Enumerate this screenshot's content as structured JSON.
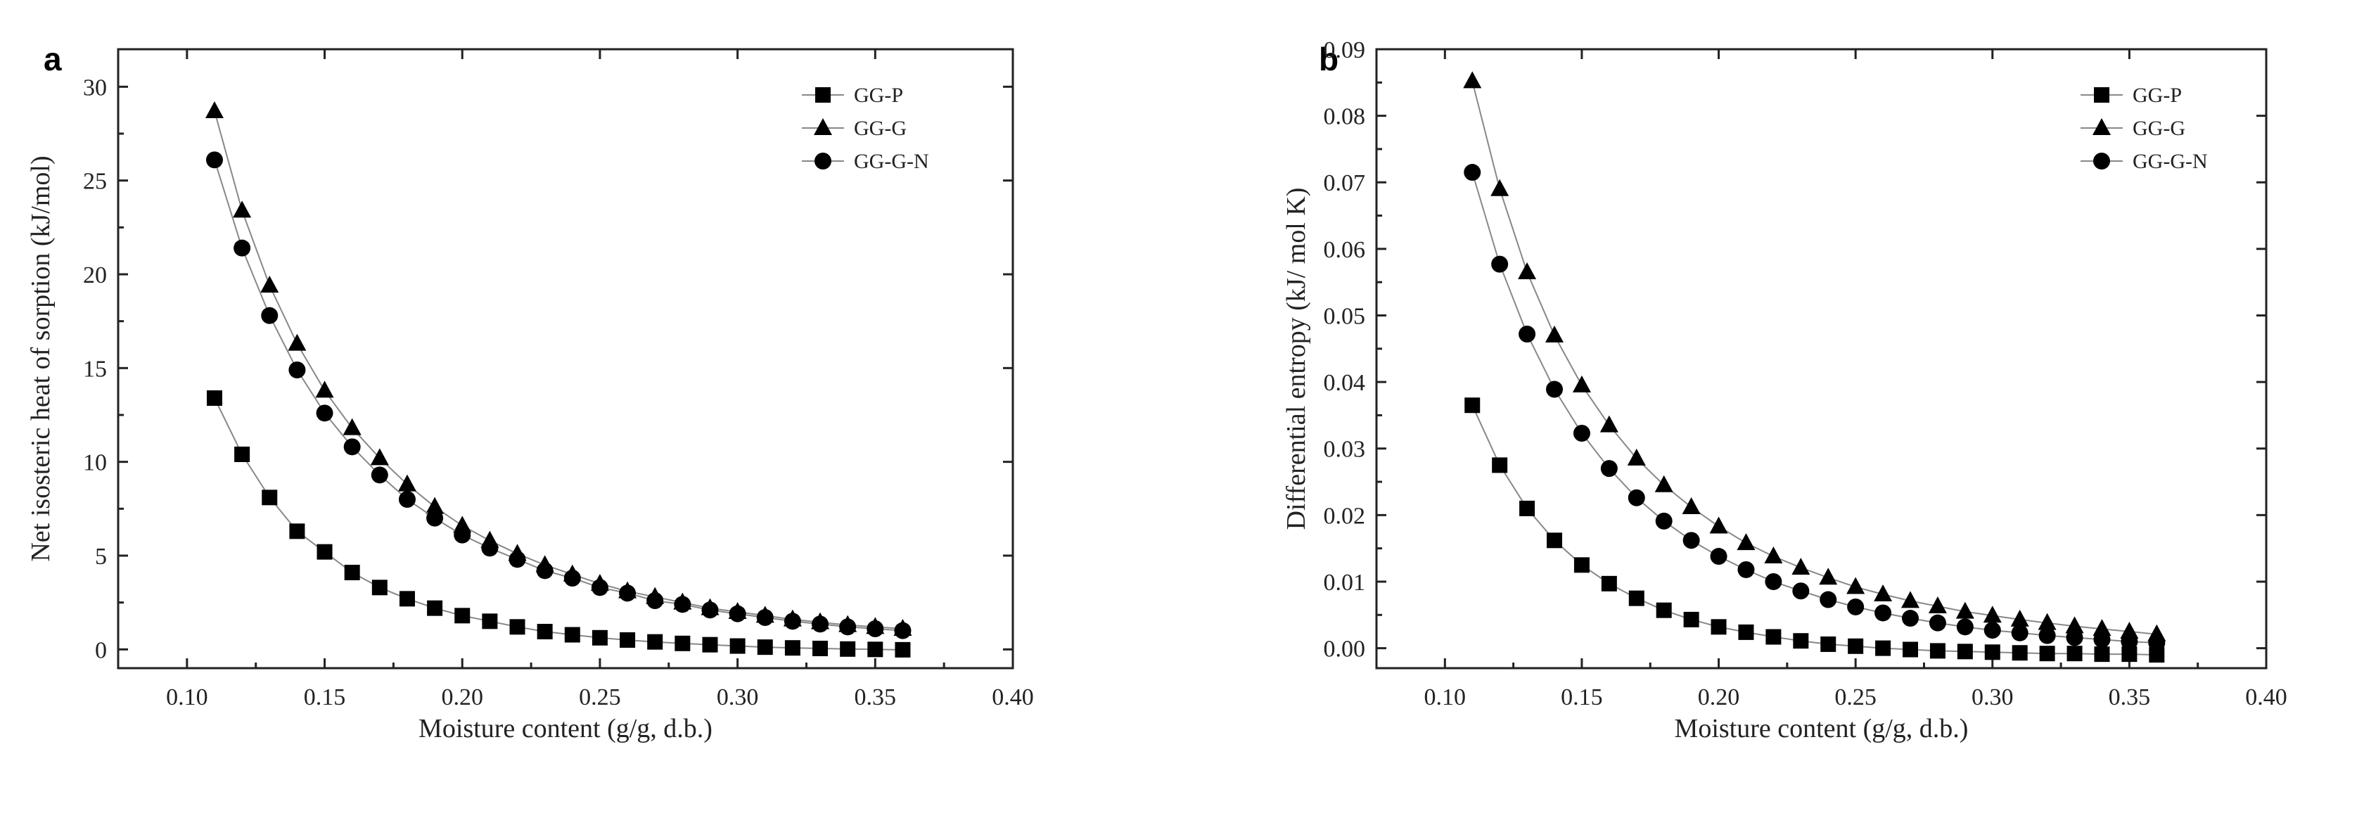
{
  "chart_data": [
    {
      "panel": "a",
      "type": "scatter",
      "title": "",
      "xlabel": "Moisture content (g/g, d.b.)",
      "ylabel": "Net isosteric heat of sorption (kJ/mol)",
      "xlim": [
        0.075,
        0.4
      ],
      "ylim": [
        -1,
        32
      ],
      "xticks": [
        0.1,
        0.15,
        0.2,
        0.25,
        0.3,
        0.35,
        0.4
      ],
      "xtick_labels": [
        "0.10",
        "0.15",
        "0.20",
        "0.25",
        "0.30",
        "0.35",
        "0.40"
      ],
      "yticks": [
        0,
        5,
        10,
        15,
        20,
        25,
        30
      ],
      "ytick_labels": [
        "0",
        "5",
        "10",
        "15",
        "20",
        "25",
        "30"
      ],
      "legend_position": "top-right",
      "x": [
        0.11,
        0.12,
        0.13,
        0.14,
        0.15,
        0.16,
        0.17,
        0.18,
        0.19,
        0.2,
        0.21,
        0.22,
        0.23,
        0.24,
        0.25,
        0.26,
        0.27,
        0.28,
        0.29,
        0.3,
        0.31,
        0.32,
        0.33,
        0.34,
        0.35,
        0.36
      ],
      "series": [
        {
          "name": "GG-P",
          "marker": "square",
          "values": [
            13.4,
            10.4,
            8.1,
            6.3,
            5.2,
            4.1,
            3.3,
            2.7,
            2.2,
            1.8,
            1.5,
            1.2,
            0.95,
            0.78,
            0.62,
            0.5,
            0.4,
            0.32,
            0.25,
            0.18,
            0.12,
            0.08,
            0.05,
            0.02,
            0.0,
            -0.02
          ]
        },
        {
          "name": "GG-G",
          "marker": "triangle",
          "values": [
            28.7,
            23.4,
            19.4,
            16.3,
            13.8,
            11.8,
            10.2,
            8.8,
            7.6,
            6.6,
            5.8,
            5.1,
            4.5,
            4.0,
            3.5,
            3.1,
            2.8,
            2.5,
            2.2,
            2.0,
            1.8,
            1.6,
            1.45,
            1.3,
            1.2,
            1.1
          ]
        },
        {
          "name": "GG-G-N",
          "marker": "circle",
          "values": [
            26.1,
            21.4,
            17.8,
            14.9,
            12.6,
            10.8,
            9.3,
            8.0,
            7.0,
            6.1,
            5.4,
            4.8,
            4.2,
            3.8,
            3.3,
            3.0,
            2.6,
            2.4,
            2.1,
            1.9,
            1.7,
            1.5,
            1.35,
            1.2,
            1.1,
            1.0
          ]
        }
      ]
    },
    {
      "panel": "b",
      "type": "scatter",
      "title": "",
      "xlabel": "Moisture content (g/g, d.b.)",
      "ylabel": "Differential entropy (kJ/ mol K)",
      "xlim": [
        0.075,
        0.4
      ],
      "ylim": [
        -0.003,
        0.09
      ],
      "xticks": [
        0.1,
        0.15,
        0.2,
        0.25,
        0.3,
        0.35,
        0.4
      ],
      "xtick_labels": [
        "0.10",
        "0.15",
        "0.20",
        "0.25",
        "0.30",
        "0.35",
        "0.40"
      ],
      "yticks": [
        0.0,
        0.01,
        0.02,
        0.03,
        0.04,
        0.05,
        0.06,
        0.07,
        0.08,
        0.09
      ],
      "ytick_labels": [
        "0.00",
        "0.01",
        "0.02",
        "0.03",
        "0.04",
        "0.05",
        "0.06",
        "0.07",
        "0.08",
        "0.09"
      ],
      "legend_position": "top-right",
      "x": [
        0.11,
        0.12,
        0.13,
        0.14,
        0.15,
        0.16,
        0.17,
        0.18,
        0.19,
        0.2,
        0.21,
        0.22,
        0.23,
        0.24,
        0.25,
        0.26,
        0.27,
        0.28,
        0.29,
        0.3,
        0.31,
        0.32,
        0.33,
        0.34,
        0.35,
        0.36
      ],
      "series": [
        {
          "name": "GG-P",
          "marker": "square",
          "values": [
            0.0365,
            0.0275,
            0.021,
            0.0162,
            0.0125,
            0.0097,
            0.0075,
            0.0057,
            0.0043,
            0.0032,
            0.0024,
            0.0017,
            0.0011,
            0.0006,
            0.0003,
            0.0,
            -0.0002,
            -0.0004,
            -0.0005,
            -0.0006,
            -0.0007,
            -0.0008,
            -0.0008,
            -0.0009,
            -0.0009,
            -0.001
          ]
        },
        {
          "name": "GG-G",
          "marker": "triangle",
          "values": [
            0.0852,
            0.069,
            0.0565,
            0.047,
            0.0395,
            0.0335,
            0.0285,
            0.0245,
            0.0212,
            0.0183,
            0.0158,
            0.0138,
            0.0121,
            0.0106,
            0.0092,
            0.0081,
            0.0071,
            0.0063,
            0.0055,
            0.0049,
            0.0043,
            0.0038,
            0.0033,
            0.0029,
            0.0025,
            0.0021
          ]
        },
        {
          "name": "GG-G-N",
          "marker": "circle",
          "values": [
            0.0715,
            0.0577,
            0.0472,
            0.0389,
            0.0323,
            0.027,
            0.0226,
            0.0191,
            0.0162,
            0.0138,
            0.0118,
            0.01,
            0.0086,
            0.0073,
            0.0062,
            0.0053,
            0.0045,
            0.0038,
            0.0032,
            0.0027,
            0.0023,
            0.0019,
            0.0016,
            0.0013,
            0.001,
            0.0008
          ]
        }
      ]
    }
  ]
}
